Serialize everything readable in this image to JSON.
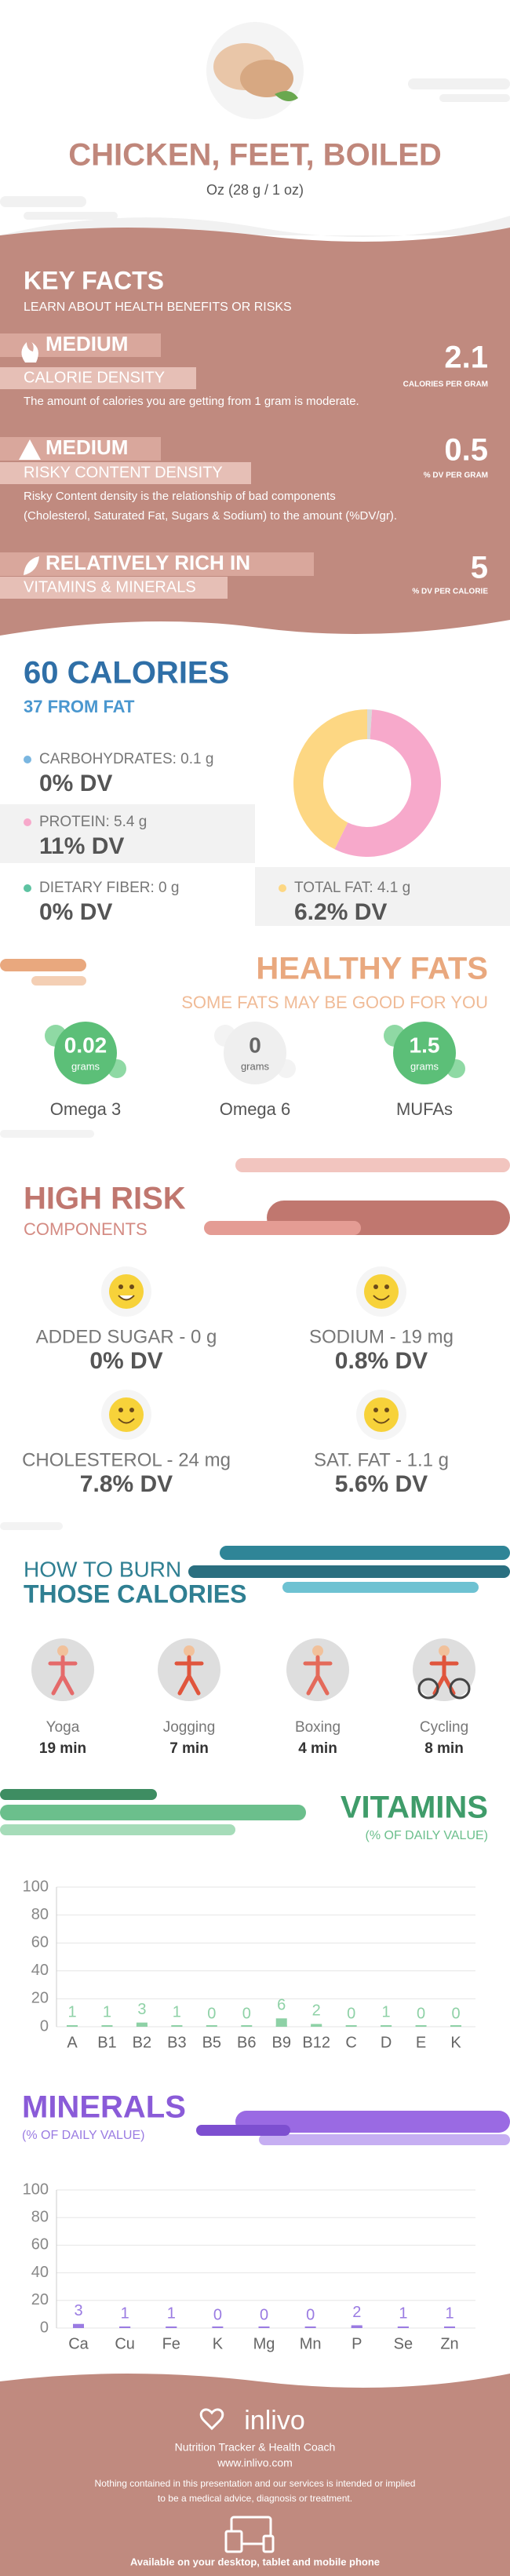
{
  "header": {
    "title": "CHICKEN, FEET, BOILED",
    "serving": "Oz (28 g / 1 oz)"
  },
  "key_facts": {
    "title": "KEY FACTS",
    "subtitle": "LEARN ABOUT HEALTH BENEFITS OR RISKS",
    "facts": [
      {
        "level": "MEDIUM",
        "name": "CALORIE DENSITY",
        "value": 2.1,
        "unit": "CALORIES PER GRAM",
        "description": [
          "The amount of calories you are getting from 1 gram is moderate."
        ]
      },
      {
        "level": "MEDIUM",
        "name": "RISKY CONTENT DENSITY",
        "value": 0.5,
        "unit": "% DV PER GRAM",
        "description": [
          "Risky Content density is the relationship of bad components",
          "(Cholesterol, Saturated Fat, Sugars & Sodium) to the amount (%DV/gr)."
        ]
      },
      {
        "level": "RELATIVELY RICH  IN",
        "name": "VITAMINS & MINERALS",
        "value": 5,
        "unit": "% DV PER CALORIE"
      }
    ]
  },
  "calories": {
    "title": "60 CALORIES",
    "from_fat": "37 FROM FAT",
    "nutrients": [
      {
        "label": "CARBOHYDRATES: 0.1 g",
        "dv": "0% DV"
      },
      {
        "label": "PROTEIN: 5.4 g",
        "dv": "11% DV"
      },
      {
        "label": "DIETARY FIBER: 0 g",
        "dv": "0% DV"
      },
      {
        "label": "TOTAL FAT: 4.1 g",
        "dv": "6.2% DV"
      }
    ]
  },
  "healthy_fats": {
    "title": "HEALTHY FATS",
    "subtitle": "SOME FATS MAY BE GOOD FOR YOU",
    "items": [
      {
        "amount": "0.02",
        "unit": "grams",
        "name": "Omega 3"
      },
      {
        "amount": "0",
        "unit": "grams",
        "name": "Omega 6"
      },
      {
        "amount": "1.5",
        "unit": "grams",
        "name": "MUFAs"
      }
    ]
  },
  "high_risk": {
    "title": "HIGH RISK",
    "subtitle": "COMPONENTS",
    "items": [
      {
        "label": "ADDED SUGAR - 0 g",
        "dv": "0% DV"
      },
      {
        "label": "SODIUM - 19 mg",
        "dv": "0.8% DV"
      },
      {
        "label": "CHOLESTEROL - 24 mg",
        "dv": "7.8% DV"
      },
      {
        "label": "SAT. FAT - 1.1 g",
        "dv": "5.6% DV"
      }
    ]
  },
  "burn": {
    "title_1": "HOW TO BURN",
    "title_2": "THOSE CALORIES",
    "activities": [
      {
        "name": "Yoga",
        "time": "19 min"
      },
      {
        "name": "Jogging",
        "time": "7 min"
      },
      {
        "name": "Boxing",
        "time": "4 min"
      },
      {
        "name": "Cycling",
        "time": "8 min"
      }
    ]
  },
  "chart_data": [
    {
      "type": "pie",
      "values": [
        0.1,
        5.4,
        4.1
      ],
      "colors": [
        "#d9d9d9",
        "#f7a9cb",
        "#fdd783"
      ]
    },
    {
      "type": "bar",
      "title": "VITAMINS",
      "subtitle": "(% OF DAILY VALUE)",
      "categories": [
        "A",
        "B1",
        "B2",
        "B3",
        "B5",
        "B6",
        "B9",
        "B12",
        "C",
        "D",
        "E",
        "K"
      ],
      "values": [
        1,
        1,
        3,
        1,
        0,
        0,
        6,
        2,
        0,
        1,
        0,
        0
      ],
      "color": "#8ed1a6",
      "ylim": [
        0,
        100
      ],
      "yticks": [
        0,
        20,
        40,
        60,
        80,
        100
      ],
      "grid": true
    },
    {
      "type": "bar",
      "title": "MINERALS",
      "subtitle": "(% OF DAILY VALUE)",
      "categories": [
        "Ca",
        "Cu",
        "Fe",
        "K",
        "Mg",
        "Mn",
        "P",
        "Se",
        "Zn"
      ],
      "values": [
        3,
        1,
        1,
        0,
        0,
        0,
        2,
        1,
        1
      ],
      "color": "#9a7be2",
      "ylim": [
        0,
        100
      ],
      "yticks": [
        0,
        20,
        40,
        60,
        80,
        100
      ],
      "grid": true
    }
  ],
  "footer": {
    "brand": "inlivo",
    "tagline": "Nutrition Tracker & Health Coach",
    "url": "www.inlivo.com",
    "disclaimer": [
      "Nothing contained in this presentation and our services is intended or implied",
      "to be a medical advice, diagnosis or treatment."
    ],
    "availability": "Available on your desktop, tablet and mobile phone"
  }
}
